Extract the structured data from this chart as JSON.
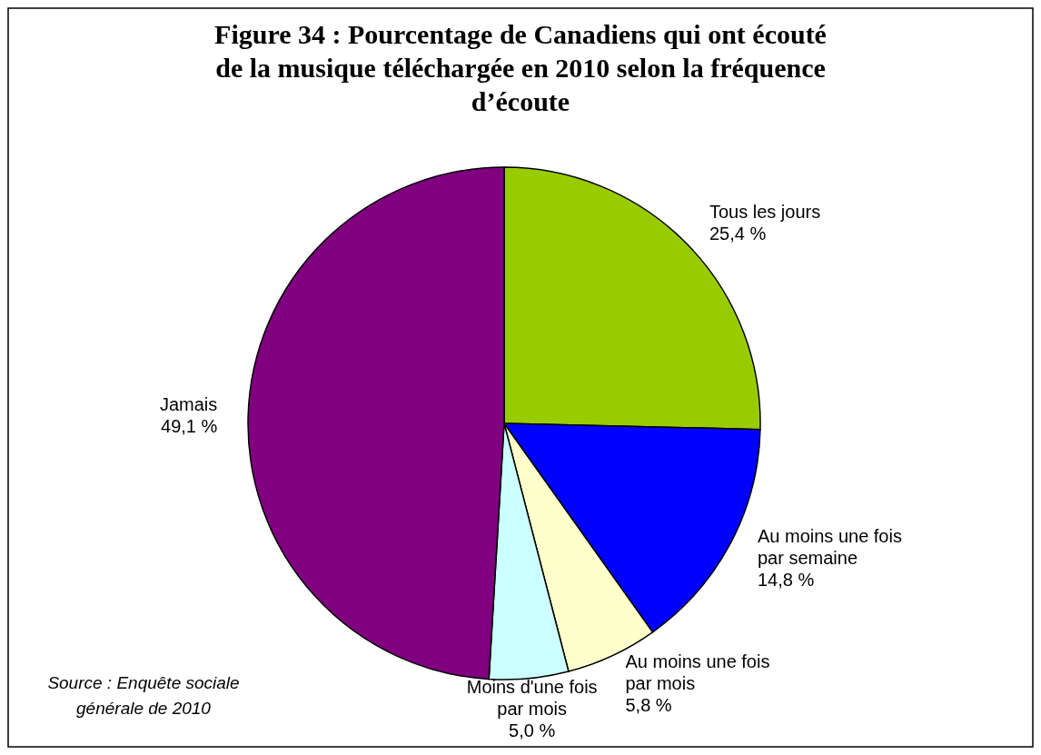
{
  "chart_data": {
    "type": "pie",
    "title": "Figure 34 : Pourcentage de Canadiens qui ont écouté de la musique téléchargée en 2010 selon la fréquence d’écoute",
    "categories": [
      "Tous les jours",
      "Au moins une fois par semaine",
      "Au moins une fois par mois",
      "Moins d'une fois par mois",
      "Jamais"
    ],
    "values": [
      25.4,
      14.8,
      5.8,
      5.0,
      49.1
    ],
    "colors": [
      "#99cc00",
      "#0000ff",
      "#ffffcc",
      "#ccffff",
      "#800080"
    ],
    "value_labels": [
      "25,4 %",
      "14,8 %",
      "5,8 %",
      "5,0 %",
      "49,1 %"
    ],
    "annotations": [
      "Source : Enquête sociale générale de 2010"
    ]
  }
}
